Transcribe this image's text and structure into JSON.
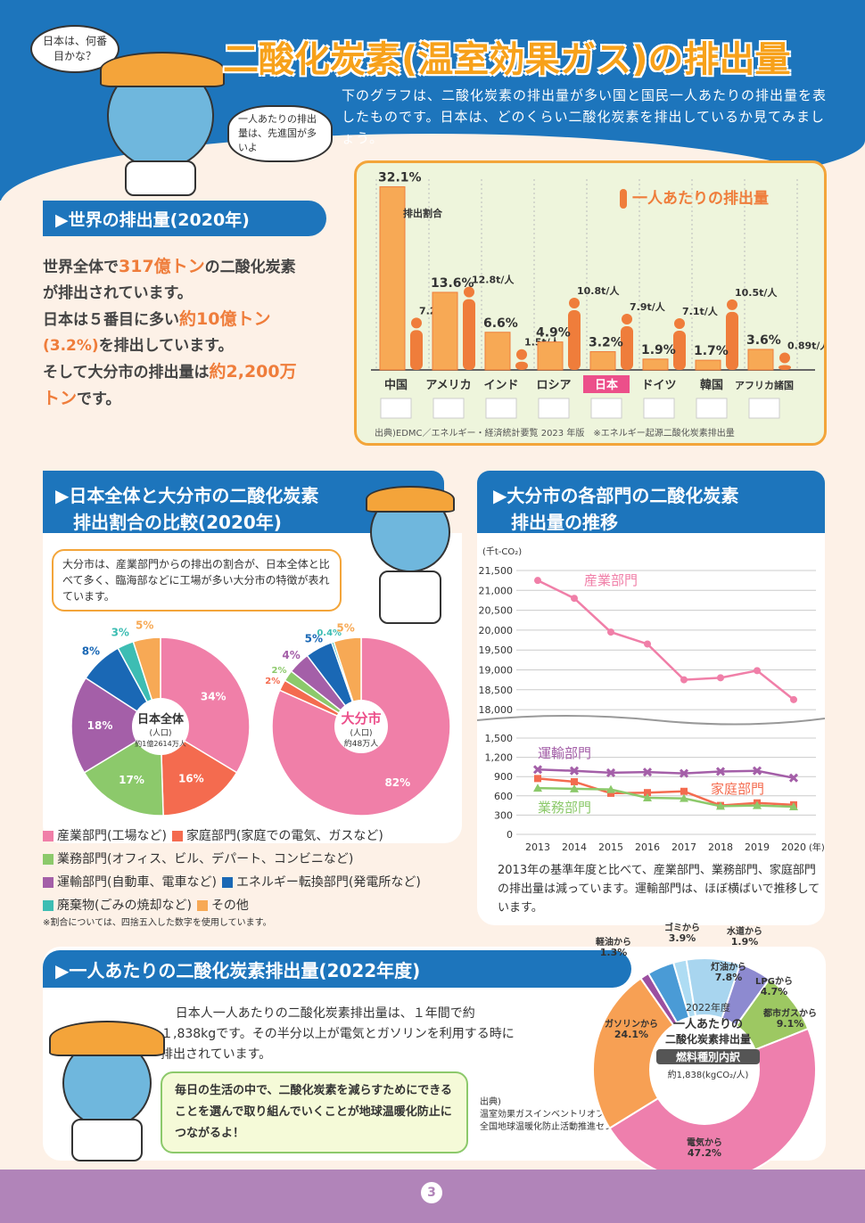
{
  "header": {
    "title": "二酸化炭素(温室効果ガス)の排出量",
    "bubble1": "日本は、何番目かな？",
    "bubble2": "一人あたりの排出量は、先進国が多いよ",
    "intro": "下のグラフは、二酸化炭素の排出量が多い国と国民一人あたりの排出量を表したものです。日本は、どのくらい二酸化炭素を排出しているか見てみましょう。"
  },
  "world": {
    "heading": "▶世界の排出量(2020年)",
    "l1a": "世界全体で",
    "l1b": "317億トン",
    "l1c": "の二酸化炭素",
    "l2": "が排出されています。",
    "l3a": "日本は５番目に多い",
    "l3b": "約10億トン",
    "l4a": "(3.2%)",
    "l4b": "を排出しています。",
    "l5a": "そして大分市の排出量は",
    "l5b": "約2,200万",
    "l6a": "トン",
    "l6b": "です。"
  },
  "country_chart": {
    "per_capita_title": "一人あたりの排出量",
    "share_label": "排出割合",
    "per_capita_label": "一人当たりの排出量",
    "unit_note": "t/人",
    "source": "出典)EDMC／エネルギー・経済統計要覧 2023 年版　※エネルギー起源二酸化炭素排出量",
    "highlight": "日本"
  },
  "chart_data": [
    {
      "type": "bar",
      "categories": [
        "中国",
        "アメリカ",
        "インド",
        "ロシア",
        "日本",
        "ドイツ",
        "韓国",
        "アフリカ諸国"
      ],
      "series": [
        {
          "name": "排出割合",
          "values": [
            32.1,
            13.6,
            6.6,
            4.9,
            3.2,
            1.9,
            1.7,
            3.6
          ]
        },
        {
          "name": "一人当たりの排出量",
          "values": [
            7.2,
            12.8,
            1.5,
            10.8,
            7.9,
            7.1,
            10.5,
            0.89
          ]
        }
      ],
      "labels_share": [
        "32.1%",
        "13.6%",
        "6.6%",
        "4.9%",
        "3.2%",
        "1.9%",
        "1.7%",
        "3.6%"
      ],
      "labels_pc": [
        "7.2t/人",
        "12.8t/人",
        "1.5t/人",
        "10.8t/人",
        "7.9t/人",
        "7.1t/人",
        "10.5t/人",
        "0.89t/人"
      ]
    },
    {
      "type": "pie",
      "title": "日本全体",
      "sub": "(人口)",
      "sub2": "約1億2614万人",
      "categories": [
        "産業部門",
        "家庭部門",
        "業務部門",
        "運輸部門",
        "エネルギー転換部門",
        "廃棄物",
        "その他"
      ],
      "values": [
        34,
        16,
        17,
        18,
        8,
        3,
        5
      ],
      "labels": [
        "34%",
        "16%",
        "17%",
        "18%",
        "8%",
        "3%",
        "5%"
      ],
      "colors": [
        "#f07fa8",
        "#f46b4f",
        "#8cc96b",
        "#a45fa8",
        "#1a68b5",
        "#3dbdb3",
        "#f7a955"
      ]
    },
    {
      "type": "pie",
      "title": "大分市",
      "sub": "(人口)",
      "sub2": "約48万人",
      "categories": [
        "産業部門",
        "家庭部門",
        "業務部門",
        "運輸部門",
        "エネルギー転換部門",
        "廃棄物",
        "その他"
      ],
      "values": [
        82,
        2,
        2,
        4,
        5,
        0.4,
        5
      ],
      "labels": [
        "82%",
        "2%",
        "2%",
        "4%",
        "5%",
        "0.4%",
        "5%"
      ],
      "colors": [
        "#f07fa8",
        "#f46b4f",
        "#8cc96b",
        "#a45fa8",
        "#1a68b5",
        "#3dbdb3",
        "#f7a955"
      ]
    },
    {
      "type": "line",
      "x": [
        "2013",
        "2014",
        "2015",
        "2016",
        "2017",
        "2018",
        "2019",
        "2020"
      ],
      "unit": "(千t-CO₂)",
      "xunit": "(年)",
      "upper_ticks": [
        "21,500",
        "21,000",
        "20,500",
        "20,000",
        "19,500",
        "19,000",
        "18,500",
        "18,000"
      ],
      "lower_ticks": [
        "1,500",
        "1,200",
        "900",
        "600",
        "300",
        "0"
      ],
      "series": [
        {
          "name": "産業部門",
          "values": [
            21250,
            20800,
            19950,
            19650,
            18750,
            18800,
            18980,
            18250
          ]
        },
        {
          "name": "運輸部門",
          "values": [
            1010,
            990,
            960,
            970,
            950,
            980,
            990,
            880
          ]
        },
        {
          "name": "家庭部門",
          "values": [
            870,
            820,
            640,
            650,
            670,
            450,
            490,
            460
          ]
        },
        {
          "name": "業務部門",
          "values": [
            720,
            710,
            700,
            570,
            560,
            440,
            450,
            430
          ]
        }
      ]
    },
    {
      "type": "pie",
      "title": "2022年度一人あたりの二酸化炭素排出量",
      "categories": [
        "電気から",
        "ガソリンから",
        "軽油から",
        "ゴミから",
        "水道から",
        "灯油から",
        "LPGから",
        "都市ガスから"
      ],
      "values": [
        47.2,
        24.1,
        1.3,
        3.9,
        1.9,
        7.8,
        4.7,
        9.1
      ],
      "labels": [
        "47.2%",
        "24.1%",
        "1.3%",
        "3.9%",
        "1.9%",
        "7.8%",
        "4.7%",
        "9.1%"
      ],
      "colors": [
        "#ee7fad",
        "#f7a054",
        "#9b4fa0",
        "#4a9bd6",
        "#aedcf3",
        "#a8d5ef",
        "#8d8ad0",
        "#9dc862"
      ]
    }
  ],
  "compare": {
    "heading1": "▶日本全体と大分市の二酸化炭素",
    "heading2": "排出割合の比較(2020年)",
    "bubble": "大分市は、産業部門からの排出の割合が、日本全体と比べて多く、臨海部などに工場が多い大分市の特徴が表れています。",
    "legend": [
      "産業部門(工場など)",
      "家庭部門(家庭での電気、ガスなど)",
      "業務部門(オフィス、ビル、デパート、コンビニなど)",
      "運輸部門(自動車、電車など)",
      "エネルギー転換部門(発電所など)",
      "廃棄物(ごみの焼却など)",
      "その他"
    ],
    "note": "※割合については、四捨五入した数字を使用しています。"
  },
  "trend": {
    "heading1": "▶大分市の各部門の二酸化炭素",
    "heading2": "排出量の推移",
    "text": "2013年の基準年度と比べて、産業部門、業務部門、家庭部門の排出量は減っています。運輸部門は、ほぼ横ばいで推移しています。"
  },
  "percap": {
    "heading": "▶一人あたりの二酸化炭素排出量(2022年度)",
    "text": "日本人一人あたりの二酸化炭素排出量は、１年間で約１,838kgです。その半分以上が電気とガソリンを利用する時に排出されています。",
    "bubble": "毎日の生活の中で、二酸化炭素を減らすためにできることを選んで取り組んでいくことが地球温暖化防止につながるよ！",
    "center1": "2022年度",
    "center2": "一人あたりの",
    "center3": "二酸化炭素排出量",
    "center4": "燃料種別内訳",
    "center5": "約1,838(kgCO₂/人)",
    "source": "出典)\n温室効果ガスインベントリオフィス\n全国地球温暖化防止活動推進センターウェブサイトより"
  },
  "footer": {
    "page": "3"
  }
}
